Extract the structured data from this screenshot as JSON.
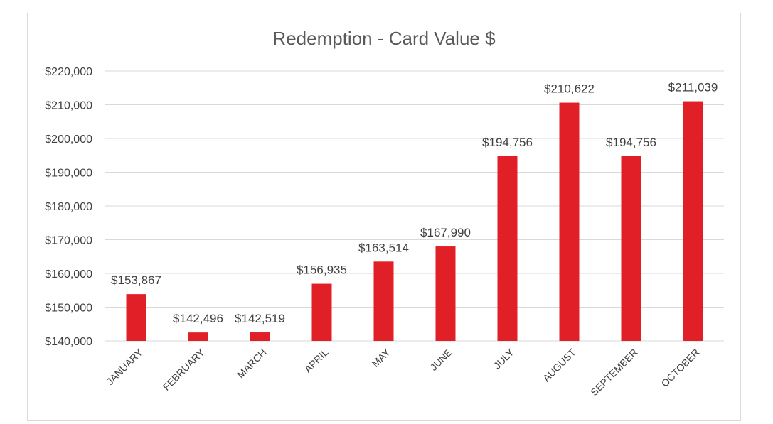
{
  "chart_data": {
    "type": "bar",
    "title": "Redemption - Card Value $",
    "xlabel": "",
    "ylabel": "",
    "categories": [
      "JANUARY",
      "FEBRUARY",
      "MARCH",
      "APRIL",
      "MAY",
      "JUNE",
      "JULY",
      "AUGUST",
      "SEPTEMBER",
      "OCTOBER"
    ],
    "values": [
      153867,
      142496,
      142519,
      156935,
      163514,
      167990,
      194756,
      210622,
      194756,
      211039
    ],
    "data_labels": [
      "$153,867",
      "$142,496",
      "$142,519",
      "$156,935",
      "$163,514",
      "$167,990",
      "$194,756",
      "$210,622",
      "$194,756",
      "$211,039"
    ],
    "ylim": [
      140000,
      220000
    ],
    "yticks": [
      140000,
      150000,
      160000,
      170000,
      180000,
      190000,
      200000,
      210000,
      220000
    ],
    "ytick_labels": [
      "$140,000",
      "$150,000",
      "$160,000",
      "$170,000",
      "$180,000",
      "$190,000",
      "$200,000",
      "$210,000",
      "$220,000"
    ],
    "grid": true,
    "legend": "none",
    "bar_color": "#e01f26"
  }
}
